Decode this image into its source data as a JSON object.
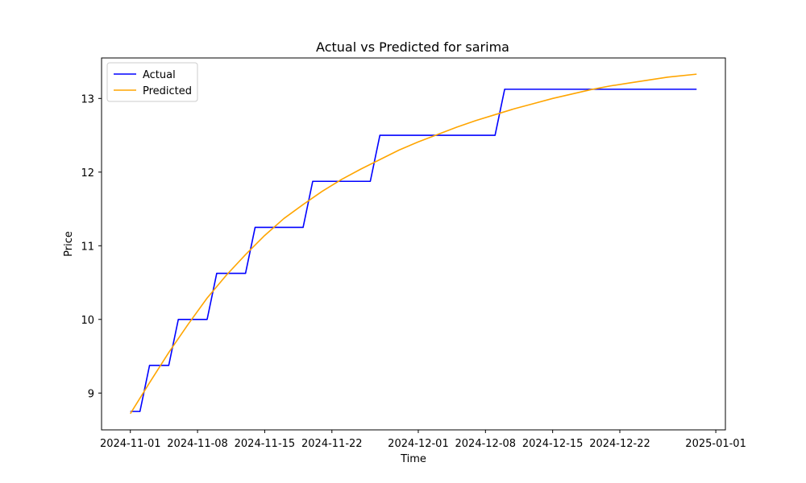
{
  "chart_data": {
    "type": "line",
    "title": "Actual vs Predicted for sarima",
    "xlabel": "Time",
    "ylabel": "Price",
    "xlim": [
      "2024-10-29",
      "2025-01-02"
    ],
    "ylim": [
      8.5,
      13.55
    ],
    "x_ticks": [
      "2024-11-01",
      "2024-11-08",
      "2024-11-15",
      "2024-11-22",
      "2024-12-01",
      "2024-12-08",
      "2024-12-15",
      "2024-12-22",
      "2025-01-01"
    ],
    "y_ticks": [
      9,
      10,
      11,
      12,
      13
    ],
    "grid": false,
    "legend": {
      "position": "top-left",
      "entries": [
        "Actual",
        "Predicted"
      ]
    },
    "series": [
      {
        "name": "Actual",
        "color": "#0000ff",
        "step": true,
        "points": [
          [
            "2024-11-01",
            8.75
          ],
          [
            "2024-11-02",
            8.75
          ],
          [
            "2024-11-03",
            9.375
          ],
          [
            "2024-11-05",
            9.375
          ],
          [
            "2024-11-06",
            10.0
          ],
          [
            "2024-11-09",
            10.0
          ],
          [
            "2024-11-10",
            10.625
          ],
          [
            "2024-11-13",
            10.625
          ],
          [
            "2024-11-14",
            11.25
          ],
          [
            "2024-11-19",
            11.25
          ],
          [
            "2024-11-20",
            11.875
          ],
          [
            "2024-11-26",
            11.875
          ],
          [
            "2024-11-27",
            12.5
          ],
          [
            "2024-12-09",
            12.5
          ],
          [
            "2024-12-10",
            13.125
          ],
          [
            "2024-12-30",
            13.125
          ]
        ]
      },
      {
        "name": "Predicted",
        "color": "#ffa500",
        "step": false,
        "points": [
          [
            "2024-11-01",
            8.72
          ],
          [
            "2024-11-03",
            9.14
          ],
          [
            "2024-11-05",
            9.55
          ],
          [
            "2024-11-07",
            9.93
          ],
          [
            "2024-11-09",
            10.29
          ],
          [
            "2024-11-11",
            10.6
          ],
          [
            "2024-11-13",
            10.88
          ],
          [
            "2024-11-15",
            11.14
          ],
          [
            "2024-11-17",
            11.37
          ],
          [
            "2024-11-19",
            11.56
          ],
          [
            "2024-11-21",
            11.74
          ],
          [
            "2024-11-23",
            11.9
          ],
          [
            "2024-11-25",
            12.04
          ],
          [
            "2024-11-27",
            12.17
          ],
          [
            "2024-11-29",
            12.3
          ],
          [
            "2024-12-01",
            12.41
          ],
          [
            "2024-12-03",
            12.51
          ],
          [
            "2024-12-05",
            12.61
          ],
          [
            "2024-12-07",
            12.7
          ],
          [
            "2024-12-09",
            12.78
          ],
          [
            "2024-12-11",
            12.86
          ],
          [
            "2024-12-13",
            12.93
          ],
          [
            "2024-12-15",
            13.0
          ],
          [
            "2024-12-17",
            13.06
          ],
          [
            "2024-12-19",
            13.12
          ],
          [
            "2024-12-21",
            13.17
          ],
          [
            "2024-12-23",
            13.21
          ],
          [
            "2024-12-25",
            13.25
          ],
          [
            "2024-12-27",
            13.29
          ],
          [
            "2024-12-30",
            13.33
          ]
        ]
      }
    ]
  }
}
